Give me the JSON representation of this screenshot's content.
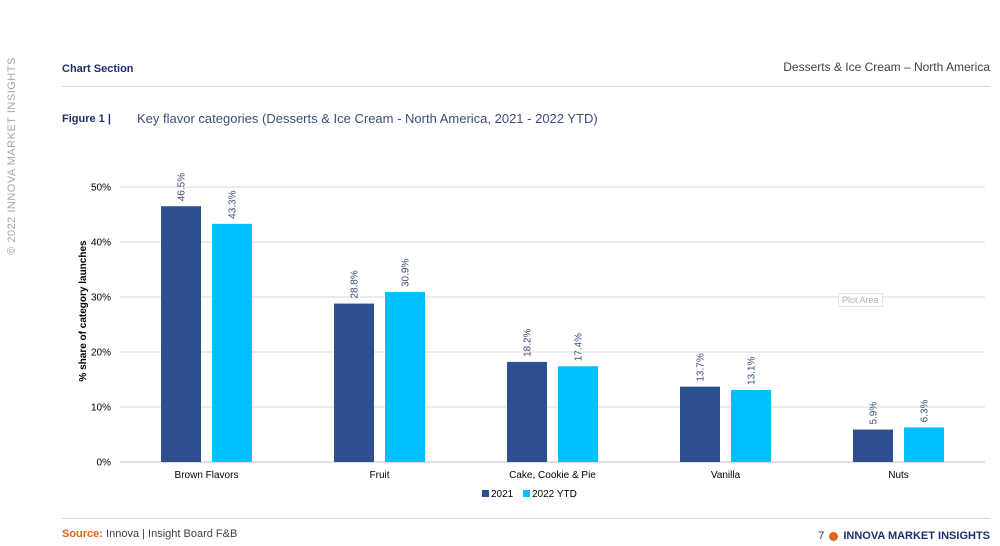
{
  "page": {
    "copyright": "© 2022 INNOVA MARKET INSIGHTS",
    "section_title": "Chart Section",
    "region_title": "Desserts & Ice Cream – North America",
    "figure_label": "Figure 1 |",
    "figure_title": "Key flavor categories (Desserts & Ice Cream - North America, 2021 - 2022 YTD)",
    "plot_area_label": "Plot Area",
    "source_label": "Source:",
    "source_text": "Innova | Insight Board F&B",
    "page_number": "7",
    "brand": "INNOVA MARKET INSIGHTS"
  },
  "colors": {
    "series_2021": "#2e4f8f",
    "series_2022": "#00bfff",
    "brand_orange": "#e4621c",
    "brand_navy": "#1f2e6e"
  },
  "chart_data": {
    "type": "bar",
    "title": "Key flavor categories (Desserts & Ice Cream - North America, 2021 - 2022 YTD)",
    "xlabel": "",
    "ylabel": "% share of category launches",
    "ylim": [
      0,
      50
    ],
    "yticks": [
      "0%",
      "10%",
      "20%",
      "30%",
      "40%",
      "50%"
    ],
    "grid": true,
    "legend_position": "bottom",
    "categories": [
      "Brown Flavors",
      "Fruit",
      "Cake, Cookie & Pie",
      "Vanilla",
      "Nuts"
    ],
    "series": [
      {
        "name": "2021",
        "values": [
          46.5,
          28.8,
          18.2,
          13.7,
          5.9
        ],
        "labels": [
          "46.5%",
          "28.8%",
          "18.2%",
          "13.7%",
          "5.9%"
        ]
      },
      {
        "name": "2022 YTD",
        "values": [
          43.3,
          30.9,
          17.4,
          13.1,
          6.3
        ],
        "labels": [
          "43.3%",
          "30.9%",
          "17.4%",
          "13.1%",
          "6.3%"
        ]
      }
    ]
  }
}
